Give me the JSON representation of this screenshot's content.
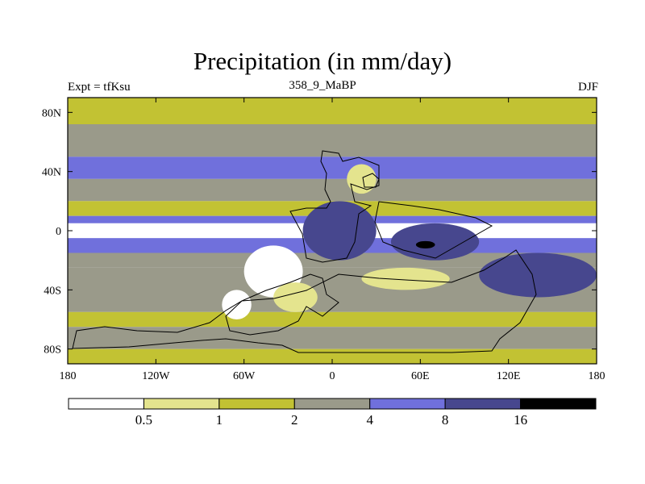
{
  "title": "Precipitation (in mm/day)",
  "experiment_label": "Expt = tfKsu",
  "period_label": "358_9_MaBP",
  "season_label": "DJF",
  "colors": {
    "c0": "#ffffff",
    "c1": "#e4e48e",
    "c2": "#c2c233",
    "c3": "#9a9a8a",
    "c4": "#7070dc",
    "c5": "#47478e",
    "c6": "#000000",
    "coast": "#000000"
  },
  "chart_data": {
    "type": "heatmap",
    "title": "Precipitation (in mm/day)",
    "x_axis": {
      "range": [
        -180,
        180
      ],
      "ticks": [
        -180,
        -120,
        -60,
        0,
        60,
        120,
        180
      ],
      "tick_labels": [
        "180",
        "120W",
        "60W",
        "0",
        "60E",
        "120E",
        "180"
      ]
    },
    "y_axis": {
      "range": [
        -90,
        90
      ],
      "ticks": [
        80,
        40,
        0,
        -40,
        -80
      ],
      "tick_labels": [
        "80N",
        "40N",
        "0",
        "40S",
        "80S"
      ]
    },
    "colorbar": {
      "levels": [
        0.5,
        1,
        2,
        4,
        8,
        16
      ],
      "level_labels": [
        "0.5",
        "1",
        "2",
        "4",
        "8",
        "16"
      ],
      "bins": [
        "<0.5",
        "0.5-1",
        "1-2",
        "2-4",
        "4-8",
        "8-16",
        ">16"
      ]
    },
    "zonal_bands": [
      {
        "lat": [
          72,
          90
        ],
        "bin": 2
      },
      {
        "lat": [
          50,
          72
        ],
        "bin": 3
      },
      {
        "lat": [
          35,
          50
        ],
        "bin": 4
      },
      {
        "lat": [
          20,
          35
        ],
        "bin": 3
      },
      {
        "lat": [
          10,
          20
        ],
        "bin": 2
      },
      {
        "lat": [
          5,
          10
        ],
        "bin": 4
      },
      {
        "lat": [
          -5,
          5
        ],
        "bin": 0
      },
      {
        "lat": [
          -15,
          -5
        ],
        "bin": 4
      },
      {
        "lat": [
          -25,
          -15
        ],
        "bin": 3
      },
      {
        "lat": [
          -55,
          -25
        ],
        "bin": 3
      },
      {
        "lat": [
          -65,
          -55
        ],
        "bin": 2
      },
      {
        "lat": [
          -80,
          -65
        ],
        "bin": 3
      },
      {
        "lat": [
          -90,
          -80
        ],
        "bin": 2
      }
    ],
    "regions": [
      {
        "lon": [
          -60,
          -20
        ],
        "lat": [
          -45,
          -10
        ],
        "bin": 0
      },
      {
        "lon": [
          -75,
          -55
        ],
        "lat": [
          -60,
          -40
        ],
        "bin": 0
      },
      {
        "lon": [
          -40,
          -10
        ],
        "lat": [
          -55,
          -35
        ],
        "bin": 1
      },
      {
        "lon": [
          -20,
          30
        ],
        "lat": [
          -20,
          20
        ],
        "bin": 5
      },
      {
        "lon": [
          10,
          30
        ],
        "lat": [
          25,
          45
        ],
        "bin": 1
      },
      {
        "lon": [
          40,
          100
        ],
        "lat": [
          -20,
          5
        ],
        "bin": 5
      },
      {
        "lon": [
          57,
          70
        ],
        "lat": [
          -12,
          -7
        ],
        "bin": 6
      },
      {
        "lon": [
          100,
          180
        ],
        "lat": [
          -45,
          -15
        ],
        "bin": 5
      },
      {
        "lon": [
          20,
          80
        ],
        "lat": [
          -40,
          -25
        ],
        "bin": 1
      }
    ]
  }
}
